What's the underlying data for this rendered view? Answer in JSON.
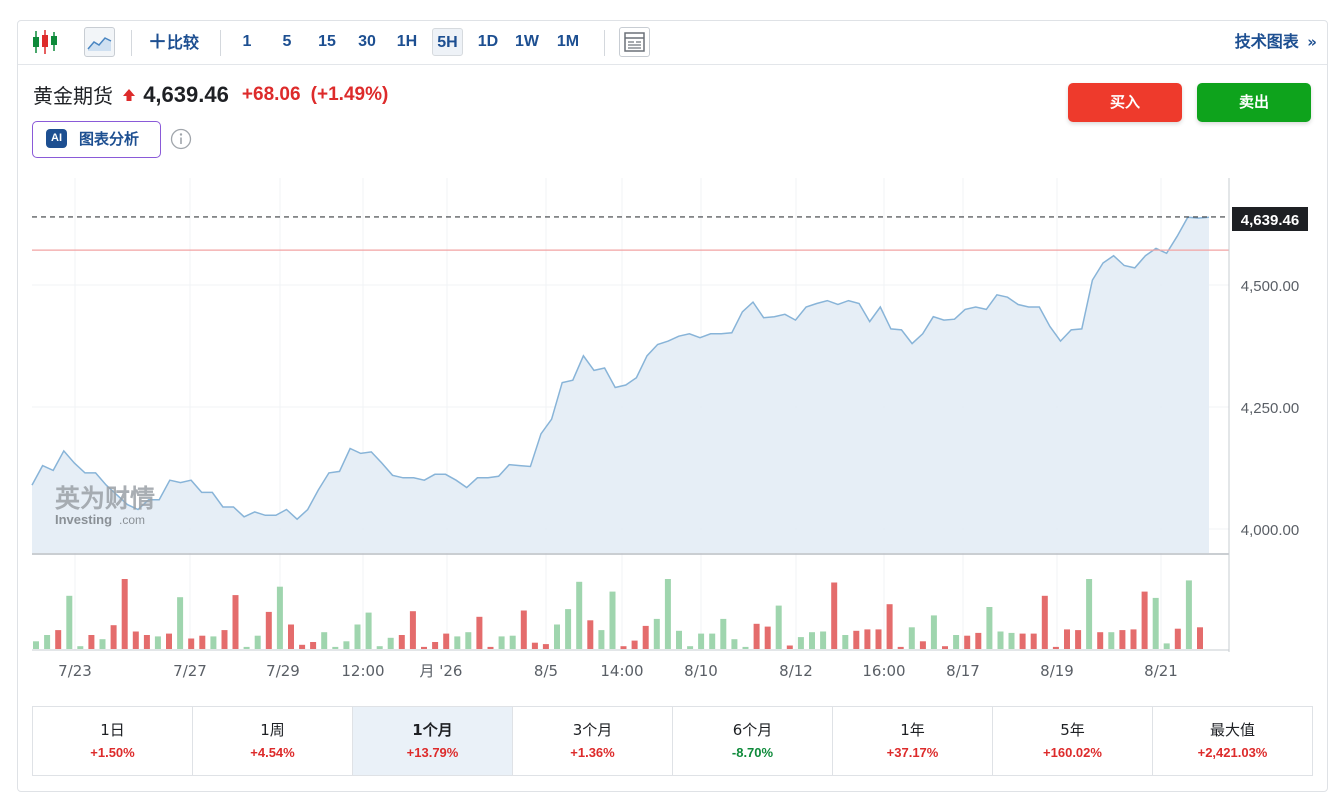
{
  "toolbar": {
    "compare_label": "比较",
    "intervals": [
      "1",
      "5",
      "15",
      "30",
      "1H",
      "5H",
      "1D",
      "1W",
      "1M"
    ],
    "active_interval": "5H",
    "tech_chart_label": "技术图表"
  },
  "quote": {
    "name": "黄金期货",
    "price": "4,639.46",
    "change": "+68.06",
    "change_pct": "(+1.49%)",
    "direction": "up"
  },
  "actions": {
    "buy": "买入",
    "sell": "卖出"
  },
  "ai": {
    "badge": "AI",
    "label": "图表分析"
  },
  "watermark": {
    "brand_cn": "英为财情",
    "brand_en": "Investing",
    "domain": ".com"
  },
  "colors": {
    "up": "#dd2b2b",
    "down": "#0e8a3a",
    "line": "#88b4d8",
    "area": "#e3ecf5",
    "vol_up": "#e46c6c",
    "vol_down": "#9fd5ae",
    "accent": "#1d4f91"
  },
  "chart_data": {
    "type": "area",
    "title": "",
    "ylim": [
      3950,
      4690
    ],
    "y_ticks": [
      "4,000.00",
      "4,250.00",
      "4,500.00"
    ],
    "x_ticks": [
      "7/23",
      "7/27",
      "7/29",
      "12:00",
      "月 '26",
      "8/5",
      "14:00",
      "8/10",
      "8/12",
      "16:00",
      "8/17",
      "8/19",
      "8/21"
    ],
    "current_price_label": "4,639.46",
    "current_price": 4639.46,
    "prev_close": 4571.4,
    "values": [
      4090,
      4130,
      4120,
      4160,
      4135,
      4115,
      4115,
      4090,
      4070,
      4050,
      4040,
      4060,
      4060,
      4100,
      4095,
      4100,
      4075,
      4075,
      4045,
      4045,
      4025,
      4035,
      4028,
      4028,
      4040,
      4020,
      4040,
      4080,
      4115,
      4118,
      4165,
      4155,
      4158,
      4135,
      4110,
      4105,
      4105,
      4100,
      4112,
      4112,
      4100,
      4085,
      4105,
      4105,
      4108,
      4132,
      4130,
      4128,
      4195,
      4225,
      4300,
      4305,
      4355,
      4325,
      4330,
      4290,
      4295,
      4310,
      4355,
      4378,
      4385,
      4395,
      4400,
      4392,
      4400,
      4400,
      4402,
      4445,
      4465,
      4433,
      4435,
      4440,
      4428,
      4455,
      4462,
      4468,
      4460,
      4468,
      4462,
      4425,
      4455,
      4410,
      4408,
      4380,
      4400,
      4435,
      4428,
      4430,
      4450,
      4455,
      4450,
      4480,
      4475,
      4460,
      4455,
      4455,
      4415,
      4385,
      4408,
      4410,
      4510,
      4545,
      4560,
      4540,
      4535,
      4560,
      4575,
      4565,
      4600,
      4639,
      4637,
      4639
    ],
    "volume": {
      "values": [
        0.11,
        0.2,
        0.27,
        0.76,
        0.04,
        0.2,
        0.14,
        0.34,
        1.0,
        0.25,
        0.2,
        0.18,
        0.22,
        0.74,
        0.15,
        0.19,
        0.18,
        0.27,
        0.77,
        0.03,
        0.19,
        0.53,
        0.89,
        0.35,
        0.06,
        0.1,
        0.24,
        0.03,
        0.11,
        0.35,
        0.52,
        0.04,
        0.16,
        0.2,
        0.54,
        0.03,
        0.1,
        0.22,
        0.18,
        0.24,
        0.46,
        0.03,
        0.18,
        0.19,
        0.55,
        0.09,
        0.07,
        0.35,
        0.57,
        0.96,
        0.41,
        0.27,
        0.82,
        0.04,
        0.12,
        0.33,
        0.43,
        1.0,
        0.26,
        0.04,
        0.22,
        0.22,
        0.43,
        0.14,
        0.03,
        0.36,
        0.32,
        0.62,
        0.05,
        0.17,
        0.24,
        0.25,
        0.95,
        0.2,
        0.26,
        0.28,
        0.28,
        0.64,
        0.03,
        0.31,
        0.11,
        0.48,
        0.04,
        0.2,
        0.19,
        0.23,
        0.6,
        0.25,
        0.23,
        0.22,
        0.22,
        0.76,
        0.03,
        0.28,
        0.27,
        1.0,
        0.24,
        0.24,
        0.27,
        0.28,
        0.82,
        0.73,
        0.08,
        0.29,
        0.98,
        0.31
      ],
      "up": [
        false,
        false,
        true,
        false,
        false,
        true,
        false,
        true,
        true,
        true,
        true,
        false,
        true,
        false,
        true,
        true,
        false,
        true,
        true,
        false,
        false,
        true,
        false,
        true,
        true,
        true,
        false,
        false,
        false,
        false,
        false,
        false,
        false,
        true,
        true,
        true,
        true,
        true,
        false,
        false,
        true,
        true,
        false,
        false,
        true,
        true,
        true,
        false,
        false,
        false,
        true,
        false,
        false,
        true,
        true,
        true,
        false,
        false,
        false,
        false,
        false,
        false,
        false,
        false,
        false,
        true,
        true,
        false,
        true,
        false,
        false,
        false,
        true,
        false,
        true,
        true,
        true,
        true,
        true,
        false,
        true,
        false,
        true,
        false,
        true,
        true,
        false,
        false,
        false,
        true,
        true,
        true,
        true,
        true,
        true,
        false,
        true,
        false,
        true,
        true,
        true,
        false,
        false,
        true,
        false,
        true
      ]
    }
  },
  "periods": [
    {
      "label": "1日",
      "value": "+1.50%",
      "dir": "up"
    },
    {
      "label": "1周",
      "value": "+4.54%",
      "dir": "up"
    },
    {
      "label": "1个月",
      "value": "+13.79%",
      "dir": "up",
      "active": true
    },
    {
      "label": "3个月",
      "value": "+1.36%",
      "dir": "up"
    },
    {
      "label": "6个月",
      "value": "-8.70%",
      "dir": "down"
    },
    {
      "label": "1年",
      "value": "+37.17%",
      "dir": "up"
    },
    {
      "label": "5年",
      "value": "+160.02%",
      "dir": "up"
    },
    {
      "label": "最大值",
      "value": "+2,421.03%",
      "dir": "up"
    }
  ]
}
